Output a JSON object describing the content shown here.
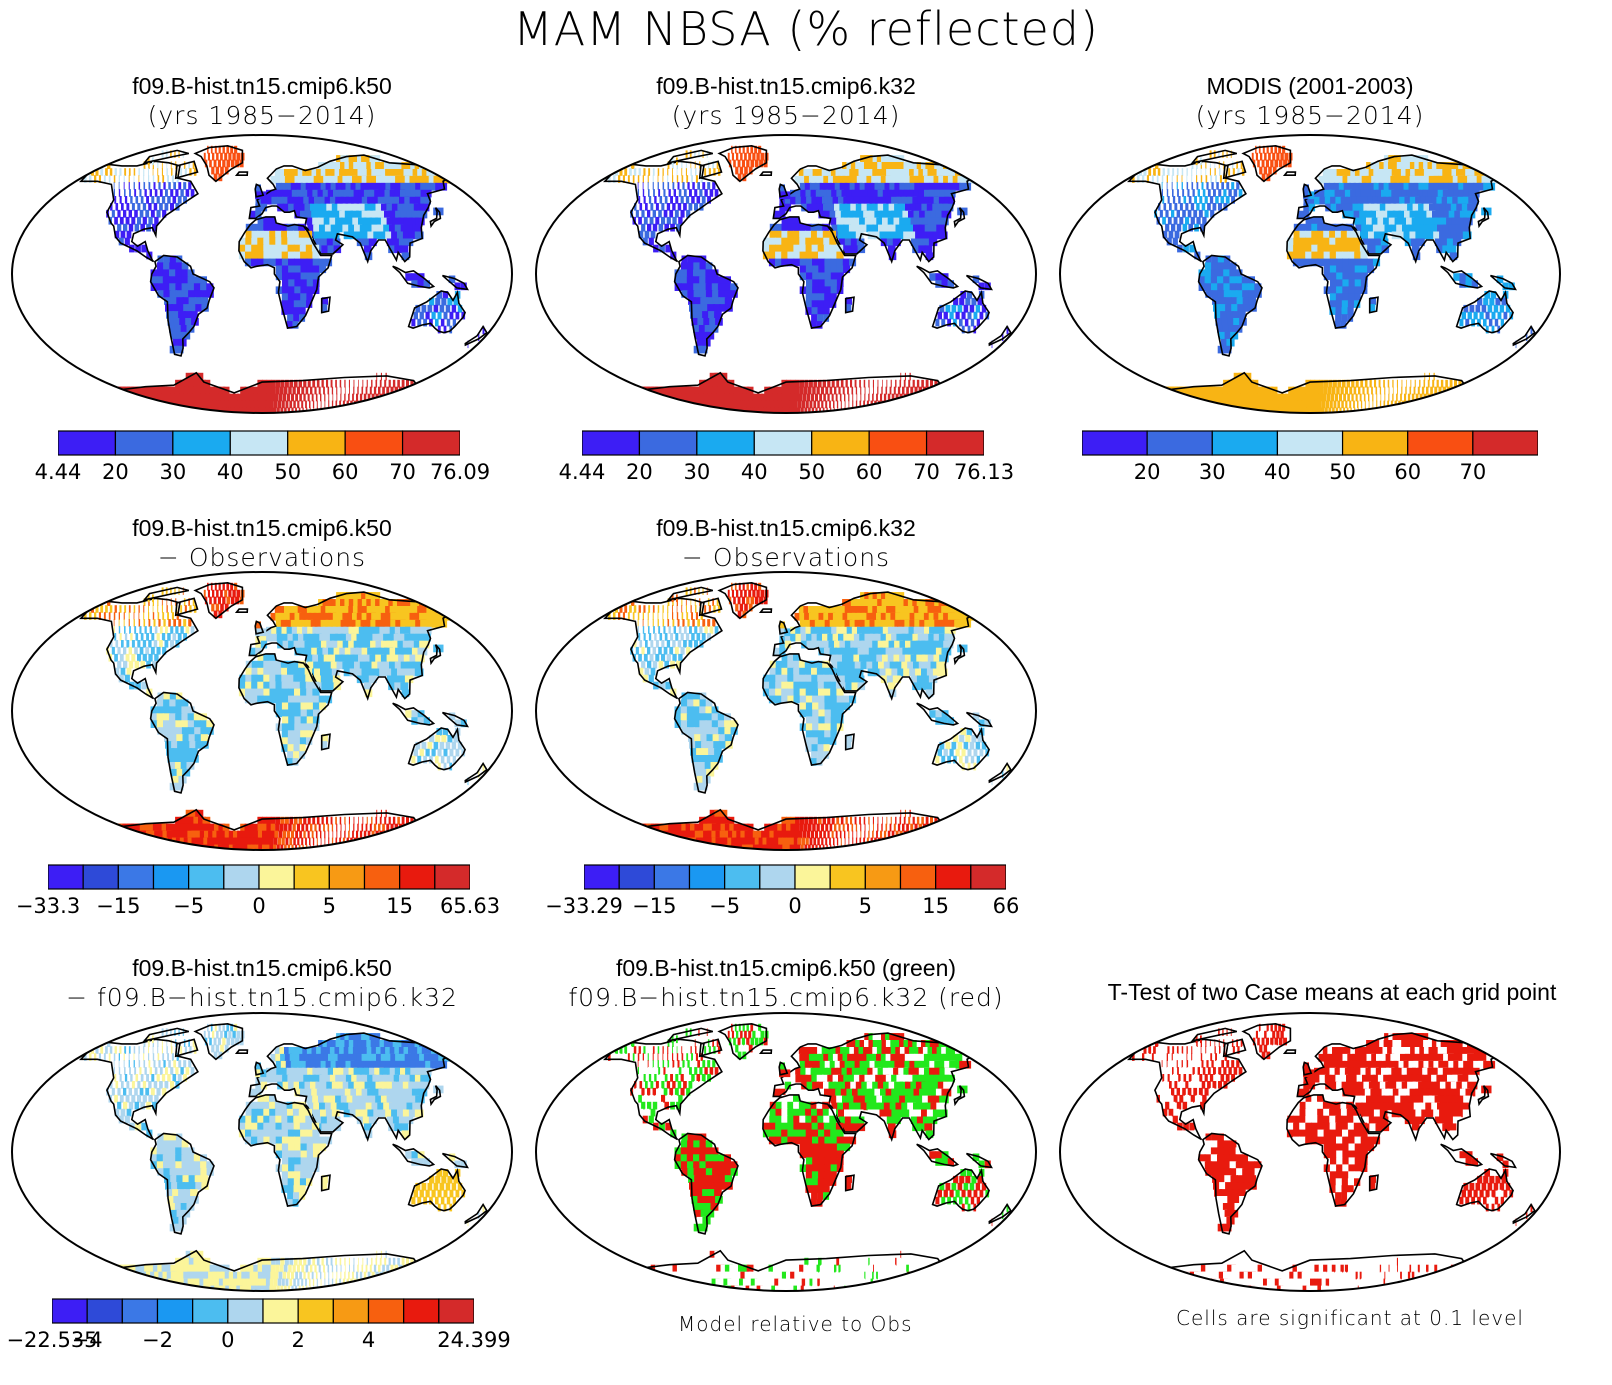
{
  "main_title": "MAM NBSA (% reflected)",
  "panels": [
    {
      "id": "p1",
      "line1": "f09.B-hist.tn15.cmip6.k50",
      "line2": "(yrs 1985−2014)",
      "palette": "abs"
    },
    {
      "id": "p2",
      "line1": "f09.B-hist.tn15.cmip6.k32",
      "line2": "(yrs 1985−2014)",
      "palette": "abs"
    },
    {
      "id": "p3",
      "line1": "MODIS (2001-2003)",
      "line2": "(yrs 1985−2014)",
      "palette": "abs_obs"
    },
    {
      "id": "p4",
      "line1": "f09.B-hist.tn15.cmip6.k50",
      "line2": "− Observations",
      "palette": "diff"
    },
    {
      "id": "p5",
      "line1": "f09.B-hist.tn15.cmip6.k32",
      "line2": "− Observations",
      "palette": "diff"
    },
    {
      "id": "p6",
      "line1": "f09.B-hist.tn15.cmip6.k50",
      "line2": "− f09.B−hist.tn15.cmip6.k32",
      "palette": "casediff"
    },
    {
      "id": "p7",
      "line1": "f09.B-hist.tn15.cmip6.k50 (green)",
      "line2": "f09.B−hist.tn15.cmip6.k32 (red)",
      "palette": "rg"
    },
    {
      "id": "p8",
      "line1": "T-Test of two Case means at each grid point",
      "line2": "",
      "palette": "ttest"
    }
  ],
  "colorbars": {
    "cb1": {
      "colors": [
        "#3d1ef5",
        "#3b6ae0",
        "#1aaaf0",
        "#c6e6f4",
        "#f8b414",
        "#f94f12",
        "#d42a2a"
      ],
      "labels": [
        "4.44",
        "20",
        "30",
        "40",
        "50",
        "60",
        "70",
        "76.09"
      ]
    },
    "cb2": {
      "colors": [
        "#3d1ef5",
        "#3b6ae0",
        "#1aaaf0",
        "#c6e6f4",
        "#f8b414",
        "#f94f12",
        "#d42a2a"
      ],
      "labels": [
        "4.44",
        "20",
        "30",
        "40",
        "50",
        "60",
        "70",
        "76.13"
      ]
    },
    "cb3": {
      "colors": [
        "#3d1ef5",
        "#3b6ae0",
        "#1aaaf0",
        "#c6e6f4",
        "#f8b414",
        "#f94f12",
        "#d42a2a"
      ],
      "labels": [
        "",
        "20",
        "30",
        "40",
        "50",
        "60",
        "70",
        ""
      ]
    },
    "cb4": {
      "colors": [
        "#3d1ef5",
        "#2e4ad8",
        "#3b78e6",
        "#1a98f2",
        "#4cbdf0",
        "#aed6ee",
        "#fbf59a",
        "#f8c520",
        "#f79a14",
        "#f7600f",
        "#e81a0e",
        "#d42a2a"
      ],
      "labels": [
        "−33.3",
        "",
        "−15",
        "",
        "−5",
        "",
        "0",
        "",
        "5",
        "",
        "15",
        "",
        "65.63"
      ]
    },
    "cb5": {
      "colors": [
        "#3d1ef5",
        "#2e4ad8",
        "#3b78e6",
        "#1a98f2",
        "#4cbdf0",
        "#aed6ee",
        "#fbf59a",
        "#f8c520",
        "#f79a14",
        "#f7600f",
        "#e81a0e",
        "#d42a2a"
      ],
      "labels": [
        "−33.29",
        "",
        "−15",
        "",
        "−5",
        "",
        "0",
        "",
        "5",
        "",
        "15",
        "",
        "66"
      ]
    },
    "cb6": {
      "colors": [
        "#3d1ef5",
        "#2e4ad8",
        "#3b78e6",
        "#1a98f2",
        "#4cbdf0",
        "#aed6ee",
        "#fbf59a",
        "#f8c520",
        "#f79a14",
        "#f7600f",
        "#e81a0e",
        "#d42a2a"
      ],
      "labels": [
        "−22.535",
        "−4",
        "",
        "−2",
        "",
        "0",
        "",
        "2",
        "",
        "4",
        "",
        "",
        "24.399"
      ]
    }
  },
  "footnotes": {
    "model_rel": "Model relative to Obs",
    "signif": "Cells are significant at 0.1 level"
  },
  "chart_data": {
    "type": "heatmap",
    "title": "MAM NBSA (% reflected)",
    "projection": "Robinson-like global map",
    "panels": [
      {
        "title": "f09.B-hist.tn15.cmip6.k50 (yrs 1985−2014)",
        "min": 4.44,
        "max": 76.09,
        "levels": [
          20,
          30,
          40,
          50,
          60,
          70
        ]
      },
      {
        "title": "f09.B-hist.tn15.cmip6.k32 (yrs 1985−2014)",
        "min": 4.44,
        "max": 76.13,
        "levels": [
          20,
          30,
          40,
          50,
          60,
          70
        ]
      },
      {
        "title": "MODIS (2001-2003) (yrs 1985−2014)",
        "levels": [
          20,
          30,
          40,
          50,
          60,
          70
        ]
      },
      {
        "title": "f09.B-hist.tn15.cmip6.k50 − Observations",
        "min": -33.3,
        "max": 65.63,
        "labels": [
          -15,
          -5,
          0,
          5,
          15
        ]
      },
      {
        "title": "f09.B-hist.tn15.cmip6.k32 − Observations",
        "min": -33.29,
        "max": 66,
        "labels": [
          -15,
          -5,
          0,
          5,
          15
        ]
      },
      {
        "title": "f09.B-hist.tn15.cmip6.k50 − f09.B−hist.tn15.cmip6.k32",
        "min": -22.535,
        "max": 24.399,
        "labels": [
          -4,
          -2,
          0,
          2,
          4
        ]
      },
      {
        "title": "f09.B-hist.tn15.cmip6.k50 (green) f09.B−hist.tn15.cmip6.k32 (red)",
        "note": "Model relative to Obs"
      },
      {
        "title": "T-Test of two Case means at each grid point",
        "note": "Cells are significant at 0.1 level"
      }
    ]
  }
}
